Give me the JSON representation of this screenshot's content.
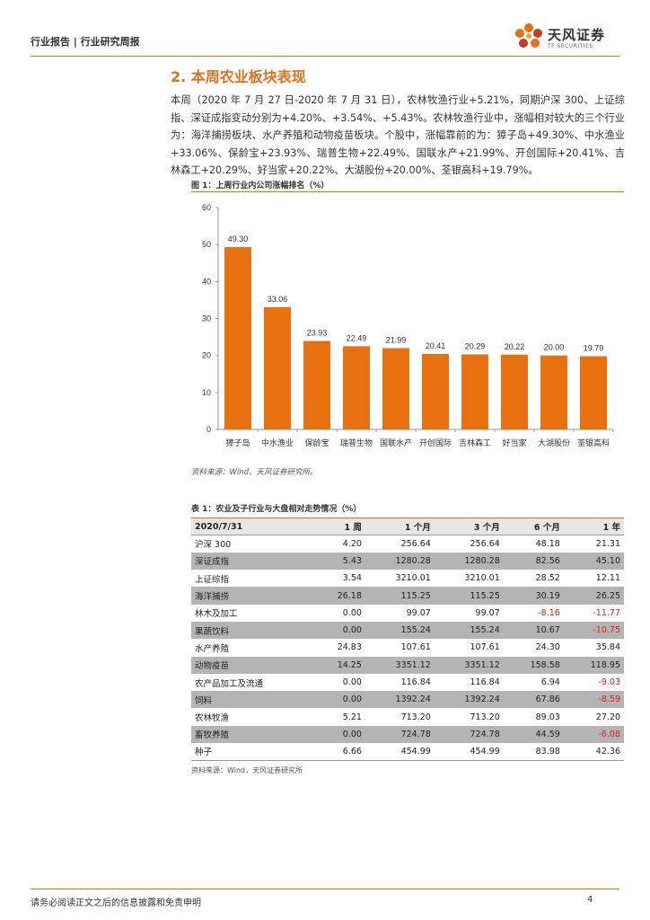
{
  "header": {
    "text": "行业报告 | 行业研究周报",
    "logo_name": "天风证券",
    "logo_sub": "TF SECURITIES"
  },
  "section": {
    "title": "2. 本周农业板块表现",
    "paragraph": "本周（2020 年 7 月 27 日-2020 年 7 月 31 日），农林牧渔行业+5.21%，同期沪深 300、上证综指、深证成指变动分别为+4.20%、+3.54%、+5.43%。农林牧渔行业中，涨幅相对较大的三个行业为：海洋捕捞板块、水产养殖和动物疫苗板块。个股中，涨幅靠前的为：獐子岛+49.30%、中水渔业+33.06%、保龄宝+23.93%、瑞普生物+22.49%、国联水产+21.99%、开创国际+20.41%、吉林森工+20.29%、好当家+20.22%、大湖股份+20.00%、荃银高科+19.79%。"
  },
  "figure": {
    "title": "图 1：上周行业内公司涨幅排名（%）",
    "source": "资料来源：Wind、天风证券研究所。"
  },
  "chart_data": {
    "type": "bar",
    "title": "图 1：上周行业内公司涨幅排名（%）",
    "categories": [
      "獐子岛",
      "中水渔业",
      "保龄宝",
      "瑞普生物",
      "国联水产",
      "开创国际",
      "吉林森工",
      "好当家",
      "大湖股份",
      "荃银高科"
    ],
    "values": [
      49.3,
      33.06,
      23.93,
      22.49,
      21.99,
      20.41,
      20.29,
      20.22,
      20.0,
      19.79
    ],
    "value_labels": [
      "49.30",
      "33.06",
      "23.93",
      "22.49",
      "21.99",
      "20.41",
      "20.29",
      "20.22",
      "20.00",
      "19.79"
    ],
    "yticks": [
      "0",
      "10",
      "20",
      "30",
      "40",
      "50",
      "60"
    ],
    "ylim": [
      0,
      60
    ],
    "xlabel": "",
    "ylabel": "",
    "bar_color": "#e8700f"
  },
  "table": {
    "title": "表 1：农业及子行业与大盘相对走势情况（%）",
    "headers": [
      "2020/7/31",
      "1 周",
      "1 个月",
      "3 个月",
      "6 个月",
      "1 年"
    ],
    "rows": [
      [
        "沪深 300",
        "4.20",
        "256.64",
        "256.64",
        "48.18",
        "21.31"
      ],
      [
        "深证成指",
        "5.43",
        "1280.28",
        "1280.28",
        "82.56",
        "45.10"
      ],
      [
        "上证综指",
        "3.54",
        "3210.01",
        "3210.01",
        "28.52",
        "12.11"
      ],
      [
        "海洋捕捞",
        "26.18",
        "115.25",
        "115.25",
        "30.19",
        "26.25"
      ],
      [
        "林木及加工",
        "0.00",
        "99.07",
        "99.07",
        "-8.16",
        "-11.77"
      ],
      [
        "果蔬饮料",
        "0.00",
        "155.24",
        "155.24",
        "10.67",
        "-10.75"
      ],
      [
        "水产养殖",
        "24.83",
        "107.61",
        "107.61",
        "24.30",
        "35.84"
      ],
      [
        "动物疫苗",
        "14.25",
        "3351.12",
        "3351.12",
        "158.58",
        "118.95"
      ],
      [
        "农产品加工及流通",
        "0.00",
        "116.84",
        "116.84",
        "6.94",
        "-9.03"
      ],
      [
        "饲料",
        "0.00",
        "1392.24",
        "1392.24",
        "67.86",
        "-8.59"
      ],
      [
        "农林牧渔",
        "5.21",
        "713.20",
        "713.20",
        "89.03",
        "27.20"
      ],
      [
        "畜牧养殖",
        "0.00",
        "724.78",
        "724.78",
        "44.59",
        "-6.08"
      ],
      [
        "种子",
        "6.66",
        "454.99",
        "454.99",
        "83.98",
        "42.36"
      ]
    ],
    "source": "资料来源：Wind，天风证券研究所"
  },
  "footer": {
    "text": "请务必阅读正文之后的信息披露和免责申明",
    "page": "4"
  },
  "colors": {
    "accent": "#e07020",
    "negative": "#e0201a"
  }
}
